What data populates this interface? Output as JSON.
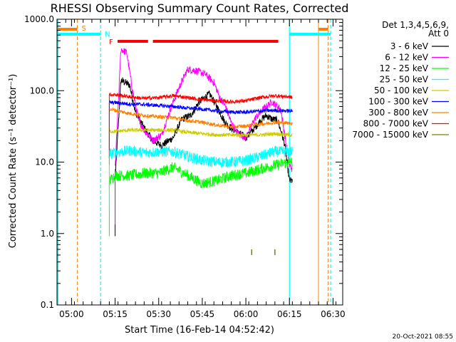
{
  "chart_data": {
    "type": "line",
    "title": "RHESSI Observing Summary Count Rates, Corrected",
    "xlabel": "Start Time (16-Feb-14 04:52:42)",
    "ylabel": "Corrected Count Rate (s⁻¹ detector⁻¹)",
    "x_tick_labels": [
      "05:00",
      "05:15",
      "05:30",
      "05:45",
      "06:00",
      "06:15",
      "06:30"
    ],
    "x_ticks_min": [
      300,
      1200,
      2100,
      3000,
      3900,
      4800,
      5700
    ],
    "xlim_min": [
      0,
      5900
    ],
    "y_scale": "log",
    "ylim": [
      0.1,
      1000
    ],
    "y_tick_labels": [
      "0.1",
      "1.0",
      "10.0",
      "100.0",
      "1000.0"
    ],
    "y_ticks": [
      0.1,
      1,
      10,
      100,
      1000
    ],
    "legend_header": [
      "Det 1,3,4,5,6,9,",
      "Att 0"
    ],
    "legend_placement": "right",
    "timestamp": "20-Oct-2021 08:55",
    "series": [
      {
        "name": "3 - 6 keV",
        "color": "#000000",
        "x": [
          1200,
          1320,
          1500,
          1620,
          1800,
          1980,
          2160,
          2400,
          2580,
          2760,
          2940,
          3150,
          3300,
          3480,
          3660,
          3900,
          4080,
          4200,
          4320,
          4440,
          4560,
          4700,
          4800,
          4860
        ],
        "values": [
          5.5,
          140,
          120,
          50,
          30,
          20,
          17,
          22,
          40,
          45,
          70,
          90,
          60,
          35,
          28,
          22,
          30,
          38,
          45,
          40,
          38,
          18,
          5.5,
          5.5
        ]
      },
      {
        "name": "6 - 12 keV",
        "color": "#ff00ff",
        "x": [
          1200,
          1320,
          1440,
          1560,
          1680,
          1800,
          1980,
          2160,
          2340,
          2520,
          2700,
          2880,
          3060,
          3240,
          3360,
          3480,
          3600,
          3720,
          3900,
          4080,
          4260,
          4440,
          4620,
          4800,
          4860
        ],
        "values": [
          8,
          380,
          340,
          100,
          40,
          28,
          20,
          24,
          55,
          110,
          200,
          190,
          170,
          130,
          80,
          60,
          35,
          26,
          22,
          40,
          55,
          70,
          55,
          9,
          8
        ]
      },
      {
        "name": "12 - 25 keV",
        "color": "#00ff00",
        "x": [
          1080,
          1200,
          1500,
          1800,
          2100,
          2400,
          2700,
          3000,
          3300,
          3600,
          3900,
          4200,
          4500,
          4800,
          4860
        ],
        "values": [
          5.5,
          6.5,
          6.5,
          7,
          7,
          8.5,
          6.5,
          5,
          5.5,
          6.5,
          7,
          8,
          9,
          10,
          10
        ]
      },
      {
        "name": "25 - 50 keV",
        "color": "#00ffff",
        "x": [
          1080,
          1200,
          1500,
          1800,
          2100,
          2400,
          2700,
          3000,
          3300,
          3600,
          3900,
          4200,
          4500,
          4800,
          4860
        ],
        "values": [
          13,
          13.5,
          14.5,
          13.5,
          14,
          14,
          12,
          10.5,
          10,
          10,
          10.5,
          12,
          14,
          14,
          14
        ]
      },
      {
        "name": "50 - 100 keV",
        "color": "#cccc00",
        "x": [
          1080,
          1200,
          1500,
          1800,
          2100,
          2400,
          2700,
          3000,
          3300,
          3600,
          3900,
          4200,
          4500,
          4800,
          4860
        ],
        "values": [
          27,
          27,
          28,
          28,
          28,
          28,
          26,
          25,
          24,
          24,
          24,
          24,
          25,
          24,
          24
        ]
      },
      {
        "name": "100 - 300 keV",
        "color": "#0000ff",
        "x": [
          1080,
          1200,
          1500,
          1800,
          2100,
          2400,
          2700,
          3000,
          3300,
          3600,
          3900,
          4200,
          4500,
          4800,
          4860
        ],
        "values": [
          68,
          68,
          65,
          64,
          62,
          60,
          57,
          55,
          52,
          50,
          50,
          52,
          53,
          52,
          52
        ]
      },
      {
        "name": "300 - 800 keV",
        "color": "#ff8000",
        "x": [
          1080,
          1200,
          1500,
          1800,
          2100,
          2400,
          2700,
          3000,
          3300,
          3600,
          3900,
          4200,
          4500,
          4800,
          4860
        ],
        "values": [
          55,
          53,
          48,
          45,
          43,
          42,
          38,
          36,
          33,
          31,
          32,
          34,
          36,
          35,
          35
        ]
      },
      {
        "name": "800 - 7000 keV",
        "color": "#ff0000",
        "x": [
          1080,
          1200,
          1500,
          1800,
          2100,
          2400,
          2700,
          3000,
          3300,
          3600,
          3900,
          4200,
          4500,
          4800,
          4860
        ],
        "values": [
          88,
          88,
          82,
          78,
          80,
          85,
          80,
          75,
          72,
          70,
          72,
          80,
          85,
          82,
          80
        ]
      },
      {
        "name": "7000 - 15000 keV",
        "color": "#808000",
        "x": [
          4020,
          4020,
          4500,
          4500
        ],
        "values": [
          0.5,
          0.6,
          0.5,
          0.6
        ]
      }
    ],
    "flags": {
      "S_label": "S",
      "N_label": "N",
      "F_label": "F",
      "S_bars": [
        [
          0,
          420
        ],
        [
          5400,
          5600
        ]
      ],
      "N_bars": [
        [
          0,
          900
        ],
        [
          4800,
          5650
        ]
      ],
      "F_bars": [
        [
          1250,
          1880
        ],
        [
          1980,
          4570
        ]
      ],
      "cyan_vlines": [
        900,
        4800,
        5650
      ],
      "orange_vlines": [
        420,
        5400,
        5600
      ]
    }
  }
}
